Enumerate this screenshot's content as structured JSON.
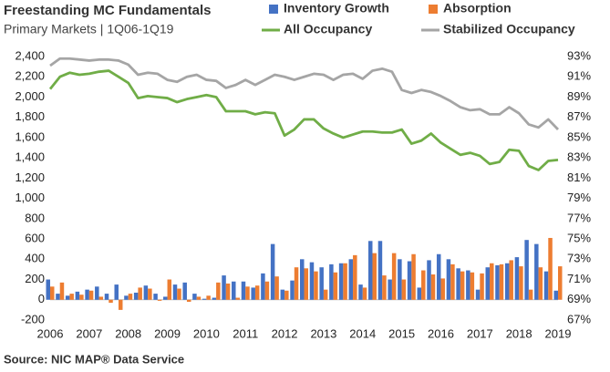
{
  "chart_data": {
    "type": "bar",
    "title": "Freestanding MC Fundamentals",
    "subtitle": "Primary Markets | 1Q06-1Q19",
    "source": "Source: NIC MAP® Data Service",
    "categories": [
      "2006",
      null,
      null,
      null,
      "2007",
      null,
      null,
      null,
      "2008",
      null,
      null,
      null,
      "2009",
      null,
      null,
      null,
      "2010",
      null,
      null,
      null,
      "2011",
      null,
      null,
      null,
      "2012",
      null,
      null,
      null,
      "2013",
      null,
      null,
      null,
      "2014",
      null,
      null,
      null,
      "2015",
      null,
      null,
      null,
      "2016",
      null,
      null,
      null,
      "2017",
      null,
      null,
      null,
      "2018",
      null,
      null,
      null,
      "2019"
    ],
    "series": [
      {
        "name": "Inventory Growth",
        "type": "bar",
        "color": "#4472c4",
        "values": [
          200,
          60,
          40,
          80,
          100,
          130,
          60,
          150,
          40,
          70,
          140,
          60,
          30,
          150,
          170,
          60,
          10,
          20,
          240,
          180,
          180,
          120,
          260,
          550,
          100,
          190,
          400,
          370,
          320,
          350,
          360,
          400,
          150,
          580,
          580,
          200,
          400,
          380,
          120,
          390,
          450,
          400,
          310,
          290,
          100,
          320,
          340,
          360,
          420,
          590,
          550,
          280,
          90
        ]
      },
      {
        "name": "Absorption",
        "type": "bar",
        "color": "#ed7d31",
        "values": [
          130,
          170,
          60,
          50,
          90,
          30,
          -30,
          -100,
          60,
          120,
          110,
          -10,
          200,
          110,
          -20,
          30,
          40,
          170,
          160,
          20,
          130,
          140,
          180,
          230,
          90,
          320,
          310,
          280,
          100,
          270,
          360,
          440,
          120,
          460,
          240,
          460,
          200,
          450,
          290,
          250,
          210,
          350,
          280,
          270,
          260,
          360,
          350,
          390,
          330,
          100,
          320,
          610,
          330
        ]
      },
      {
        "name": "All Occupancy",
        "type": "line",
        "axis": "y2",
        "color": "#70ad47",
        "values": [
          89.8,
          91.0,
          91.4,
          91.2,
          91.3,
          91.5,
          91.6,
          91.0,
          90.4,
          88.9,
          89.1,
          89.0,
          88.9,
          88.5,
          88.8,
          89.0,
          89.2,
          89.0,
          87.6,
          87.6,
          87.6,
          87.3,
          87.5,
          87.4,
          85.2,
          85.8,
          86.8,
          86.8,
          85.9,
          85.4,
          85.0,
          85.3,
          85.6,
          85.6,
          85.5,
          85.5,
          85.8,
          84.4,
          84.7,
          85.4,
          84.5,
          83.9,
          83.3,
          83.5,
          83.2,
          82.4,
          82.6,
          83.8,
          83.7,
          82.2,
          81.8,
          82.7,
          82.8
        ]
      },
      {
        "name": "Stabilized Occupancy",
        "type": "line",
        "axis": "y2",
        "color": "#a5a5a5",
        "values": [
          92.1,
          92.8,
          92.8,
          92.7,
          92.6,
          92.7,
          92.7,
          92.6,
          92.2,
          91.2,
          91.4,
          91.3,
          90.7,
          90.5,
          91.0,
          91.2,
          90.7,
          90.6,
          89.9,
          90.2,
          90.7,
          90.2,
          90.7,
          91.2,
          91.0,
          90.7,
          91.0,
          91.3,
          91.2,
          90.7,
          91.2,
          91.3,
          90.8,
          91.6,
          91.8,
          91.5,
          89.7,
          89.4,
          89.7,
          89.5,
          89.1,
          88.6,
          88.0,
          87.7,
          87.8,
          87.3,
          87.3,
          88.0,
          87.4,
          86.3,
          86.0,
          86.8,
          85.8
        ]
      }
    ],
    "ylim": [
      -200,
      2400
    ],
    "yticks": [
      -200,
      0,
      200,
      400,
      600,
      800,
      {
        "value": 1000,
        "label": "1,000"
      },
      {
        "value": 1200,
        "label": "1,200"
      },
      {
        "value": 1400,
        "label": "1,400"
      },
      {
        "value": 1600,
        "label": "1,600"
      },
      {
        "value": 1800,
        "label": "1,800"
      },
      {
        "value": 2000,
        "label": "2,000"
      },
      {
        "value": 2200,
        "label": "2,200"
      },
      {
        "value": 2400,
        "label": "2,400"
      }
    ],
    "y2lim": [
      67,
      93
    ],
    "y2ticks": [
      {
        "value": 67,
        "label": "67%"
      },
      {
        "value": 69,
        "label": "69%"
      },
      {
        "value": 71,
        "label": "71%"
      },
      {
        "value": 73,
        "label": "73%"
      },
      {
        "value": 75,
        "label": "75%"
      },
      {
        "value": 77,
        "label": "77%"
      },
      {
        "value": 79,
        "label": "79%"
      },
      {
        "value": 81,
        "label": "81%"
      },
      {
        "value": 83,
        "label": "83%"
      },
      {
        "value": 85,
        "label": "85%"
      },
      {
        "value": 87,
        "label": "87%"
      },
      {
        "value": 89,
        "label": "89%"
      },
      {
        "value": 91,
        "label": "91%"
      },
      {
        "value": 93,
        "label": "93%"
      }
    ],
    "grid": false
  }
}
